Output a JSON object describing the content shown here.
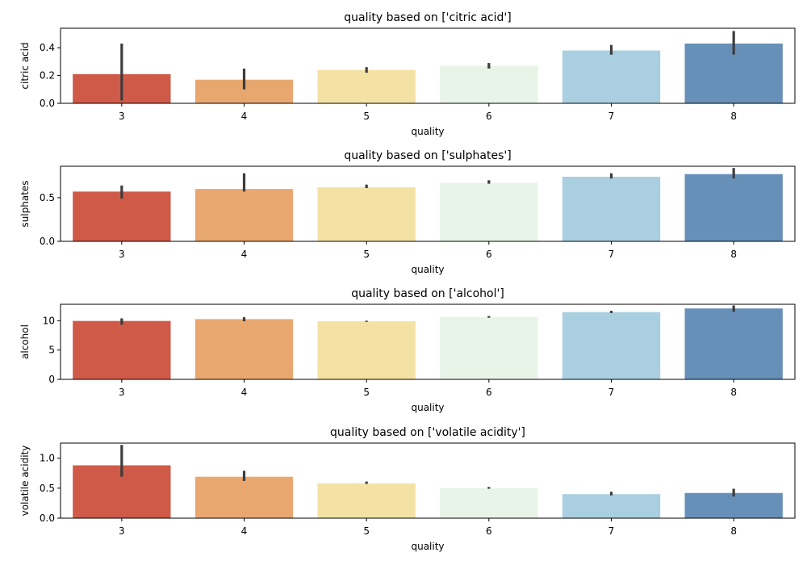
{
  "chart_data": [
    {
      "type": "bar",
      "title": "quality based on ['citric acid']",
      "xlabel": "quality",
      "ylabel": "citric acid",
      "categories": [
        "3",
        "4",
        "5",
        "6",
        "7",
        "8"
      ],
      "values": [
        0.21,
        0.17,
        0.24,
        0.27,
        0.38,
        0.43
      ],
      "ci": [
        [
          0.02,
          0.43
        ],
        [
          0.1,
          0.25
        ],
        [
          0.22,
          0.26
        ],
        [
          0.25,
          0.29
        ],
        [
          0.35,
          0.42
        ],
        [
          0.35,
          0.52
        ]
      ],
      "ylim": [
        0,
        0.54
      ],
      "yticks": [
        0.0,
        0.2,
        0.4
      ],
      "ytick_labels": [
        "0.0",
        "0.2",
        "0.4"
      ]
    },
    {
      "type": "bar",
      "title": "quality based on ['sulphates']",
      "xlabel": "quality",
      "ylabel": "sulphates",
      "categories": [
        "3",
        "4",
        "5",
        "6",
        "7",
        "8"
      ],
      "values": [
        0.57,
        0.6,
        0.62,
        0.67,
        0.74,
        0.77
      ],
      "ci": [
        [
          0.49,
          0.64
        ],
        [
          0.57,
          0.78
        ],
        [
          0.61,
          0.65
        ],
        [
          0.66,
          0.7
        ],
        [
          0.72,
          0.78
        ],
        [
          0.72,
          0.84
        ]
      ],
      "ylim": [
        0,
        0.86
      ],
      "yticks": [
        0.0,
        0.5
      ],
      "ytick_labels": [
        "0.0",
        "0.5"
      ]
    },
    {
      "type": "bar",
      "title": "quality based on ['alcohol']",
      "xlabel": "quality",
      "ylabel": "alcohol",
      "categories": [
        "3",
        "4",
        "5",
        "6",
        "7",
        "8"
      ],
      "values": [
        9.96,
        10.27,
        9.9,
        10.63,
        11.47,
        12.09
      ],
      "ci": [
        [
          9.3,
          10.4
        ],
        [
          9.9,
          10.6
        ],
        [
          9.8,
          10.0
        ],
        [
          10.5,
          10.8
        ],
        [
          11.3,
          11.7
        ],
        [
          11.5,
          12.6
        ]
      ],
      "ylim": [
        0,
        12.8
      ],
      "yticks": [
        0,
        5,
        10
      ],
      "ytick_labels": [
        "0",
        "5",
        "10"
      ]
    },
    {
      "type": "bar",
      "title": "quality based on ['volatile acidity']",
      "xlabel": "quality",
      "ylabel": "volatile acidity",
      "categories": [
        "3",
        "4",
        "5",
        "6",
        "7",
        "8"
      ],
      "values": [
        0.88,
        0.69,
        0.58,
        0.5,
        0.4,
        0.42
      ],
      "ci": [
        [
          0.69,
          1.22
        ],
        [
          0.62,
          0.79
        ],
        [
          0.57,
          0.61
        ],
        [
          0.49,
          0.52
        ],
        [
          0.38,
          0.44
        ],
        [
          0.36,
          0.49
        ]
      ],
      "ylim": [
        0,
        1.25
      ],
      "yticks": [
        0.0,
        0.5,
        1.0
      ],
      "ytick_labels": [
        "0.0",
        "0.5",
        "1.0"
      ]
    }
  ],
  "colors": {
    "bars": [
      "#d05a48",
      "#e9a770",
      "#f4e2a5",
      "#e7f4e7",
      "#aacfe0",
      "#6790b9"
    ],
    "errorbar": "#3d3d3d",
    "axis": "#000000"
  }
}
